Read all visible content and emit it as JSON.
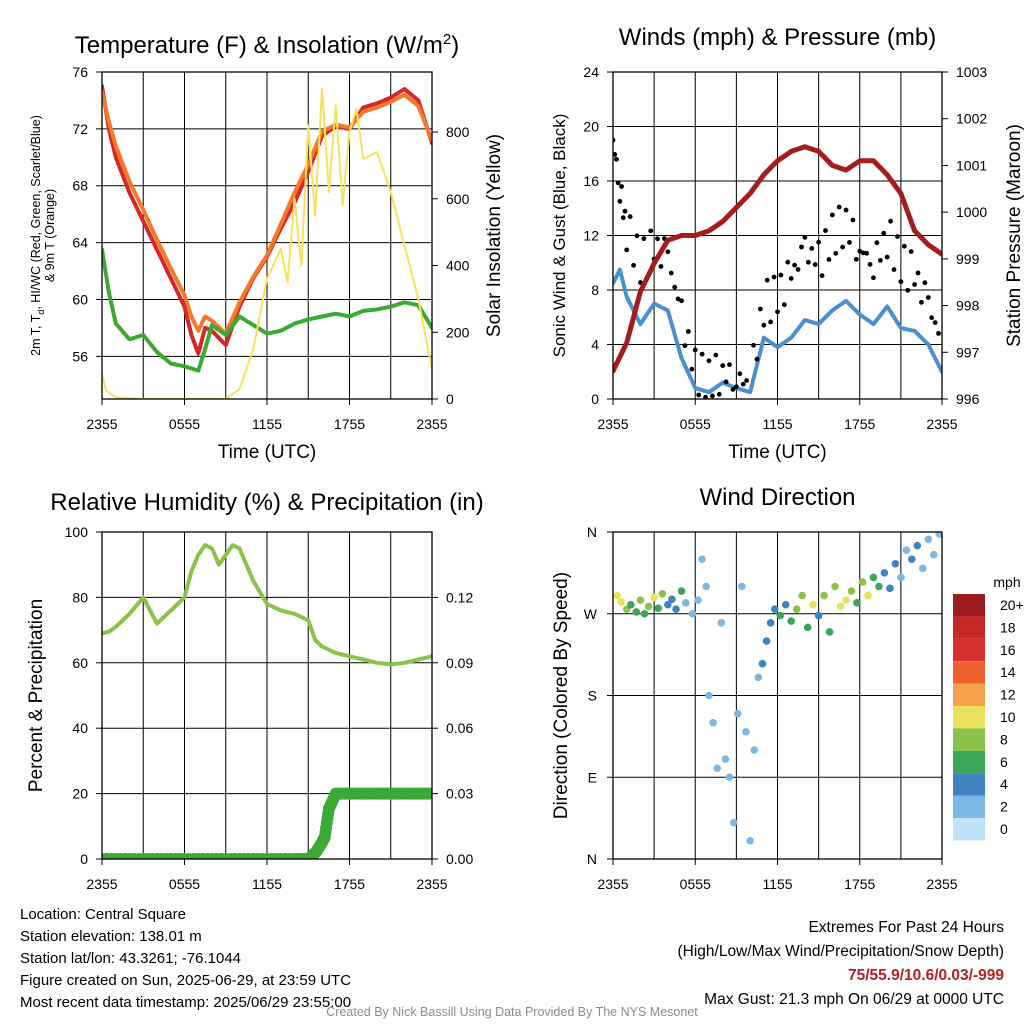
{
  "chart_data": [
    {
      "type": "line",
      "title": "Temperature (F) & Insolation (W/m²)",
      "xlabel": "Time (UTC)",
      "ylabel_left": "2m T, Td, HI/WC (Red, Green, Scarlet/Blue) & 9m T (Orange)",
      "ylabel_right": "Solar Insolation (Yellow)",
      "x_ticks": [
        "2355",
        "0555",
        "1155",
        "1755",
        "2355"
      ],
      "x_hours": [
        0,
        24
      ],
      "ylim_left": [
        53,
        76
      ],
      "yticks_left": [
        56,
        60,
        64,
        68,
        72,
        76
      ],
      "ylim_right": [
        0,
        980
      ],
      "yticks_right": [
        0,
        200,
        400,
        600,
        800
      ],
      "grid": true,
      "series": [
        {
          "role": "temp_2m",
          "color": "#d62728",
          "axis": "left",
          "x": [
            0,
            0.5,
            1,
            2,
            3,
            4,
            5,
            6,
            6.5,
            7,
            7.5,
            8,
            9,
            10,
            11,
            12,
            13,
            14,
            15,
            16,
            17,
            18,
            19,
            20,
            21,
            22,
            23,
            24
          ],
          "y": [
            75,
            72,
            70,
            67.5,
            65.5,
            63.5,
            61.5,
            59.5,
            57.5,
            56.2,
            58,
            57.8,
            56.8,
            59.5,
            61.5,
            63,
            65,
            66.8,
            69,
            71.5,
            72.2,
            72,
            73.5,
            73.8,
            74.2,
            74.8,
            74,
            71
          ]
        },
        {
          "role": "temp_9m",
          "color": "#f47a2a",
          "axis": "left",
          "x": [
            0,
            0.5,
            1,
            2,
            3,
            4,
            5,
            6,
            6.5,
            7,
            7.5,
            8,
            9,
            10,
            11,
            12,
            13,
            14,
            15,
            16,
            17,
            18,
            19,
            20,
            21,
            22,
            23,
            24
          ],
          "y": [
            74.6,
            72.5,
            70.8,
            68.3,
            66.3,
            64.2,
            62.2,
            60.3,
            58.8,
            57.8,
            58.8,
            58.5,
            57.6,
            59.8,
            61.6,
            63.1,
            65.3,
            67.5,
            69.5,
            71.8,
            72.3,
            72.1,
            73.2,
            73.5,
            73.9,
            74.4,
            73.6,
            71.2
          ]
        },
        {
          "role": "dewpoint_2m",
          "color": "#3aaa35",
          "axis": "left",
          "x": [
            0,
            0.5,
            1,
            2,
            3,
            4,
            5,
            6,
            7,
            7.5,
            8,
            9,
            10,
            11,
            12,
            13,
            14,
            15,
            16,
            17,
            18,
            19,
            20,
            21,
            22,
            23,
            24
          ],
          "y": [
            63.5,
            60.5,
            58.3,
            57.2,
            57.5,
            56.3,
            55.5,
            55.3,
            55,
            56.5,
            58.2,
            57.5,
            58.8,
            58.2,
            57.6,
            57.8,
            58.3,
            58.6,
            58.8,
            59,
            58.8,
            59.2,
            59.3,
            59.5,
            59.8,
            59.6,
            58
          ]
        },
        {
          "role": "solar_insolation",
          "color": "#f7e35b",
          "axis": "right",
          "x": [
            0,
            0.3,
            1,
            3,
            6,
            9,
            10,
            11,
            12,
            13,
            13.5,
            14,
            14.5,
            15,
            15.5,
            16,
            16.5,
            17,
            17.5,
            18,
            18.5,
            19,
            20,
            21,
            22,
            23,
            24
          ],
          "y": [
            75,
            25,
            5,
            0,
            0,
            0,
            30,
            150,
            360,
            450,
            350,
            600,
            400,
            820,
            550,
            930,
            620,
            880,
            580,
            800,
            870,
            720,
            740,
            620,
            460,
            300,
            90
          ]
        }
      ]
    },
    {
      "type": "line",
      "title": "Winds (mph) & Pressure (mb)",
      "xlabel": "Time (UTC)",
      "ylabel_left": "Sonic Wind & Gust (Blue, Black)",
      "ylabel_right": "Station Pressure (Maroon)",
      "x_ticks": [
        "2355",
        "0555",
        "1155",
        "1755",
        "2355"
      ],
      "x_hours": [
        0,
        24
      ],
      "ylim_left": [
        0,
        24
      ],
      "yticks_left": [
        0,
        4,
        8,
        12,
        16,
        20,
        24
      ],
      "ylim_right": [
        996,
        1003
      ],
      "yticks_right": [
        996,
        997,
        998,
        999,
        1000,
        1001,
        1002,
        1003
      ],
      "grid": true,
      "series": [
        {
          "role": "wind_speed",
          "color": "#4a90d0",
          "axis": "left",
          "x": [
            0,
            0.5,
            1,
            2,
            3,
            4,
            5,
            6,
            7,
            8,
            9,
            10,
            11,
            12,
            13,
            14,
            15,
            16,
            17,
            18,
            19,
            20,
            21,
            22,
            23,
            24
          ],
          "y": [
            8.5,
            9.5,
            7.5,
            5.5,
            7,
            6.5,
            3,
            0.8,
            0.5,
            1.2,
            0.8,
            0.5,
            4.5,
            3.8,
            4.5,
            5.8,
            5.5,
            6.5,
            7.2,
            6.2,
            5.5,
            6.8,
            5.2,
            5,
            4,
            2
          ]
        },
        {
          "role": "wind_gust",
          "color": "#000000",
          "axis": "left",
          "marker": "dot",
          "x": [
            0,
            0.5,
            1,
            2,
            3,
            4,
            5,
            6,
            7,
            8,
            9,
            10,
            11,
            12,
            13,
            14,
            15,
            16,
            17,
            18,
            19,
            20,
            21,
            22,
            23,
            24
          ],
          "y": [
            19,
            15.5,
            12.5,
            10,
            11,
            10.5,
            6,
            2,
            1.5,
            2,
            1.5,
            1.2,
            7,
            7.5,
            9,
            11,
            10,
            12,
            13,
            11,
            10,
            12,
            10,
            9,
            7,
            4
          ]
        },
        {
          "role": "station_pressure",
          "color": "#a51c1c",
          "axis": "right",
          "x": [
            0,
            1,
            2,
            3,
            4,
            5,
            6,
            7,
            8,
            9,
            10,
            11,
            12,
            13,
            14,
            15,
            16,
            17,
            18,
            19,
            20,
            21,
            22,
            23,
            24
          ],
          "y": [
            996.6,
            997.2,
            998.3,
            998.9,
            999.4,
            999.5,
            999.5,
            999.6,
            999.8,
            1000.1,
            1000.4,
            1000.8,
            1001.1,
            1001.3,
            1001.4,
            1001.3,
            1001.0,
            1000.9,
            1001.1,
            1001.1,
            1000.8,
            1000.4,
            999.6,
            999.3,
            999.1
          ]
        }
      ]
    },
    {
      "type": "line",
      "title": "Relative Humidity (%) & Precipitation (in)",
      "xlabel": "",
      "ylabel_left": "Percent & Precipitation",
      "x_ticks": [
        "2355",
        "0555",
        "1155",
        "1755",
        "2355"
      ],
      "x_hours": [
        0,
        24
      ],
      "ylim_left": [
        0,
        100
      ],
      "yticks_left": [
        0,
        20,
        40,
        60,
        80,
        100
      ],
      "ylim_right": [
        0,
        0.15
      ],
      "yticks_right": [
        "0.00",
        "0.03",
        "0.06",
        "0.09",
        "0.12"
      ],
      "grid": true,
      "series": [
        {
          "role": "relative_humidity",
          "color": "#8bc34a",
          "axis": "left",
          "x": [
            0,
            0.5,
            1,
            2,
            3,
            3.5,
            4,
            4.5,
            5,
            6,
            6.5,
            7,
            7.5,
            8,
            8.5,
            9,
            9.5,
            10,
            10.5,
            11,
            12,
            13,
            14,
            15,
            15.5,
            16,
            17,
            18,
            19,
            20,
            21,
            22,
            23,
            24
          ],
          "y": [
            69,
            69.5,
            71,
            75,
            80,
            76,
            72,
            74,
            76,
            80,
            88,
            93,
            96,
            95,
            90,
            93,
            96,
            95,
            90,
            85,
            78,
            76,
            75,
            73,
            67,
            65,
            63,
            62,
            61,
            60,
            59.5,
            60,
            61,
            62
          ]
        },
        {
          "role": "precipitation",
          "color": "#3aaa35",
          "axis": "right",
          "marker": "dot",
          "x": [
            0,
            2,
            4,
            6,
            8,
            10,
            12,
            14,
            15,
            15.3,
            15.6,
            15.9,
            16.2,
            16.5,
            17,
            18,
            19,
            20,
            21,
            22,
            23,
            24
          ],
          "y": [
            0,
            0,
            0,
            0,
            0,
            0,
            0,
            0,
            0,
            0.0015,
            0.0035,
            0.0065,
            0.01,
            0.023,
            0.03,
            0.03,
            0.03,
            0.03,
            0.03,
            0.03,
            0.03,
            0.03
          ]
        }
      ]
    },
    {
      "type": "scatter",
      "title": "Wind Direction",
      "xlabel": "",
      "ylabel_left": "Direction (Colored By Speed)",
      "x_ticks": [
        "2355",
        "0555",
        "1155",
        "1755",
        "2355"
      ],
      "x_hours": [
        0,
        24
      ],
      "ylim_left": [
        0,
        360
      ],
      "y_tick_labels": [
        "N",
        "E",
        "S",
        "W",
        "N"
      ],
      "y_tick_values": [
        0,
        90,
        180,
        270,
        360
      ],
      "grid": true,
      "colorbar": {
        "title": "mph",
        "labels": [
          "20+",
          "18",
          "16",
          "14",
          "12",
          "10",
          "8",
          "6",
          "4",
          "2",
          "0"
        ],
        "colors": [
          "#9b1c1c",
          "#c62828",
          "#d9302e",
          "#f0622d",
          "#f7a04a",
          "#e9e15e",
          "#8bc34a",
          "#3aa65a",
          "#3f83c2",
          "#7db8e4",
          "#bfe4fa"
        ]
      },
      "points": [
        [
          0.3,
          290,
          10
        ],
        [
          0.6,
          283,
          9
        ],
        [
          1,
          275,
          8
        ],
        [
          1.3,
          280,
          6
        ],
        [
          1.7,
          272,
          6
        ],
        [
          2,
          285,
          8
        ],
        [
          2.3,
          270,
          5
        ],
        [
          2.6,
          278,
          7
        ],
        [
          3,
          288,
          10
        ],
        [
          3.3,
          276,
          6
        ],
        [
          3.6,
          292,
          8
        ],
        [
          4,
          280,
          4
        ],
        [
          4.3,
          286,
          3
        ],
        [
          4.6,
          275,
          3
        ],
        [
          5,
          295,
          5
        ],
        [
          5.3,
          282,
          2
        ],
        [
          5.8,
          270,
          1
        ],
        [
          6.2,
          285,
          1
        ],
        [
          6.5,
          330,
          1
        ],
        [
          6.8,
          300,
          1
        ],
        [
          7,
          180,
          1
        ],
        [
          7.3,
          150,
          1
        ],
        [
          7.6,
          100,
          1
        ],
        [
          7.9,
          260,
          1
        ],
        [
          8.2,
          110,
          1
        ],
        [
          8.5,
          90,
          1
        ],
        [
          8.8,
          40,
          1
        ],
        [
          9.1,
          160,
          1
        ],
        [
          9.4,
          300,
          1
        ],
        [
          9.7,
          140,
          1
        ],
        [
          10,
          20,
          1
        ],
        [
          10.3,
          120,
          1
        ],
        [
          10.6,
          200,
          2
        ],
        [
          10.9,
          215,
          3
        ],
        [
          11.2,
          240,
          3
        ],
        [
          11.5,
          260,
          4
        ],
        [
          11.8,
          275,
          4
        ],
        [
          12.2,
          268,
          5
        ],
        [
          12.6,
          280,
          4
        ],
        [
          13,
          262,
          6
        ],
        [
          13.4,
          275,
          8
        ],
        [
          13.8,
          290,
          7
        ],
        [
          14.2,
          255,
          6
        ],
        [
          14.6,
          280,
          9
        ],
        [
          15,
          268,
          4
        ],
        [
          15.4,
          290,
          8
        ],
        [
          15.8,
          250,
          6
        ],
        [
          16.2,
          300,
          7
        ],
        [
          16.6,
          278,
          9
        ],
        [
          17,
          285,
          10
        ],
        [
          17.4,
          295,
          8
        ],
        [
          17.8,
          282,
          6
        ],
        [
          18.2,
          305,
          7
        ],
        [
          18.6,
          290,
          9
        ],
        [
          19,
          310,
          6
        ],
        [
          19.4,
          300,
          5
        ],
        [
          19.8,
          315,
          4
        ],
        [
          20.2,
          298,
          4
        ],
        [
          20.6,
          325,
          3
        ],
        [
          21,
          310,
          2
        ],
        [
          21.4,
          340,
          2
        ],
        [
          21.8,
          330,
          3
        ],
        [
          22.2,
          345,
          4
        ],
        [
          22.6,
          320,
          2
        ],
        [
          23,
          352,
          2
        ],
        [
          23.4,
          335,
          2
        ],
        [
          23.8,
          358,
          2
        ]
      ]
    }
  ],
  "info": {
    "location": "Location: Central Square",
    "elevation": "Station elevation: 138.01 m",
    "latlon": "Station lat/lon: 43.3261; -76.1044",
    "created": "Figure created on Sun, 2025-06-29, at 23:59 UTC",
    "recent": "Most recent data timestamp: 2025/06/29 23:55:00"
  },
  "extremes": {
    "heading": "Extremes For Past 24 Hours",
    "legend": "(High/Low/Max Wind/Precipitation/Snow Depth)",
    "values": "75/55.9/10.6/0.03/-999",
    "gust": "Max Gust: 21.3 mph On 06/29 at 0000 UTC"
  },
  "credit": "Created By Nick Bassill Using Data Provided By The NYS Mesonet"
}
